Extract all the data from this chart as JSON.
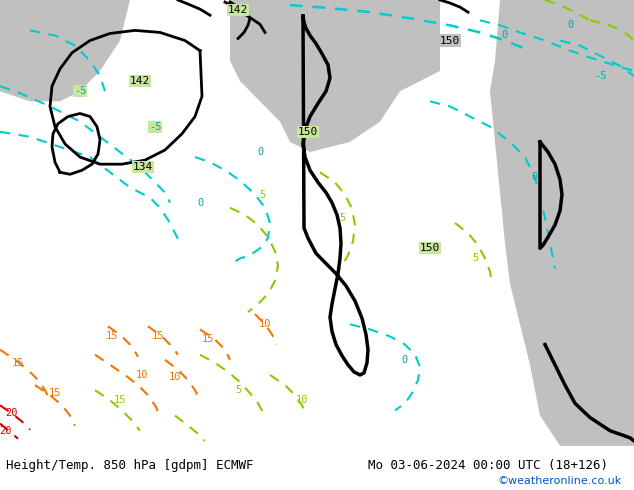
{
  "title_left": "Height/Temp. 850 hPa [gdpm] ECMWF",
  "title_right": "Mo 03-06-2024 00:00 UTC (18+126)",
  "credit": "©weatheronline.co.uk",
  "bg_color": "#c8e6a0",
  "land_color": "#c8e6a0",
  "sea_color": "#d8d8d8",
  "bottom_bar_color": "#ffffff",
  "title_fontsize": 9,
  "credit_color": "#0055cc",
  "bottom_bar_height": 0.09
}
